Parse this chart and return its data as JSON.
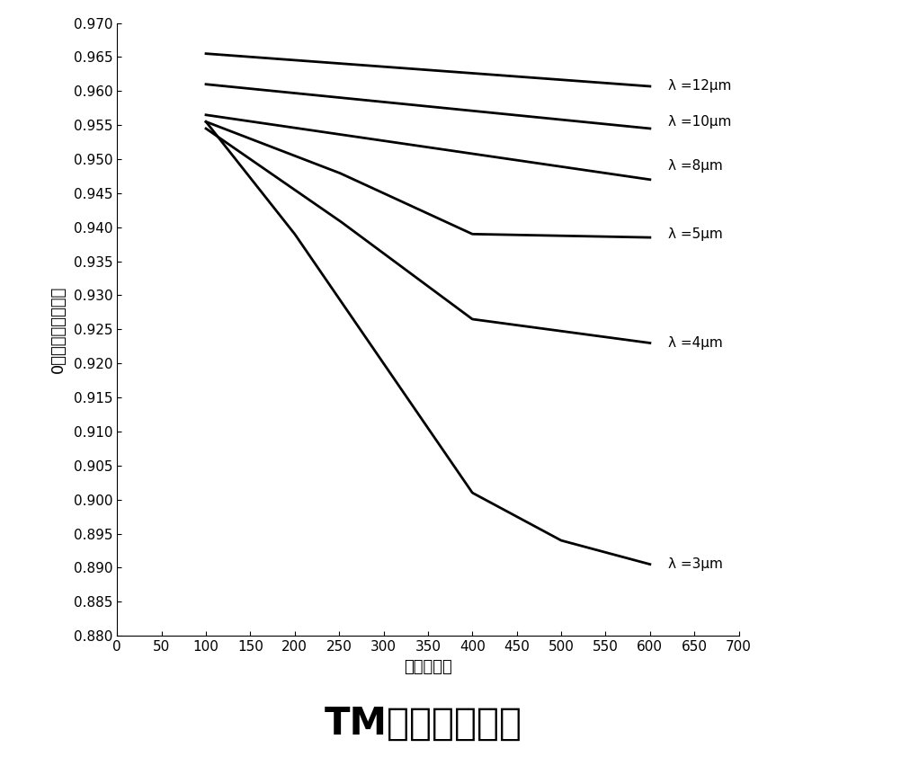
{
  "title": "TM光透过率曲线",
  "xlabel": "周期／纳米",
  "ylabel": "0级透射光衍射效率",
  "xlim": [
    0,
    700
  ],
  "ylim": [
    0.88,
    0.97
  ],
  "xticks": [
    0,
    50,
    100,
    150,
    200,
    250,
    300,
    350,
    400,
    450,
    500,
    550,
    600,
    650,
    700
  ],
  "yticks": [
    0.88,
    0.885,
    0.89,
    0.895,
    0.9,
    0.905,
    0.91,
    0.915,
    0.92,
    0.925,
    0.93,
    0.935,
    0.94,
    0.945,
    0.95,
    0.955,
    0.96,
    0.965,
    0.97
  ],
  "curves": [
    {
      "label": "λ =12μm",
      "x": [
        100,
        200,
        300,
        400,
        500,
        600
      ],
      "y": [
        0.9655,
        0.9647,
        0.9638,
        0.9628,
        0.9617,
        0.9607
      ]
    },
    {
      "label": "λ =10μm",
      "x": [
        100,
        200,
        300,
        400,
        500,
        600
      ],
      "y": [
        0.961,
        0.9598,
        0.9583,
        0.9567,
        0.955,
        0.9545
      ]
    },
    {
      "label": "λ =8μm",
      "x": [
        100,
        200,
        300,
        400,
        500,
        600
      ],
      "y": [
        0.9565,
        0.9547,
        0.9525,
        0.95,
        0.948,
        0.947
      ]
    },
    {
      "label": "λ =5μm",
      "x": [
        100,
        200,
        300,
        400,
        500,
        600
      ],
      "y": [
        0.9555,
        0.949,
        0.942,
        0.934,
        0.926,
        0.9385
      ]
    },
    {
      "label": "λ =4μm",
      "x": [
        100,
        200,
        300,
        400,
        500,
        600
      ],
      "y": [
        0.9545,
        0.944,
        0.931,
        0.918,
        0.91,
        0.923
      ]
    },
    {
      "label": "λ =3μm",
      "x": [
        100,
        200,
        300,
        400,
        500,
        600
      ],
      "y": [
        0.955,
        0.939,
        0.921,
        0.902,
        0.897,
        0.8905
      ]
    }
  ],
  "label_positions": [
    [
      620,
      0.9607,
      "λ =12μm"
    ],
    [
      620,
      0.9555,
      "λ =10μm"
    ],
    [
      620,
      0.949,
      "λ =8μm"
    ],
    [
      620,
      0.939,
      "λ =5μm"
    ],
    [
      620,
      0.923,
      "λ =4μm"
    ],
    [
      620,
      0.8905,
      "λ =3μm"
    ]
  ],
  "line_color": "#000000",
  "bg_color": "#ffffff",
  "title_fontsize": 30,
  "axis_fontsize": 13,
  "tick_fontsize": 11,
  "label_fontsize": 11,
  "linewidth": 2.0
}
